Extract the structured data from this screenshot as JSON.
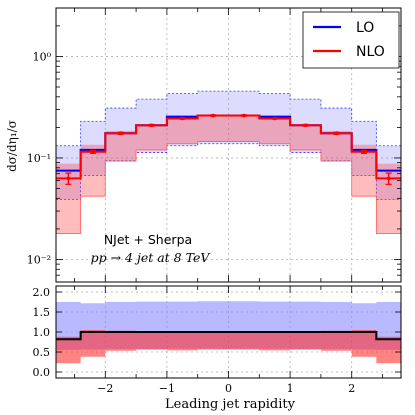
{
  "chart_data": [
    {
      "type": "line",
      "panel": "main",
      "ylabel": "dσ/dη₁/σ",
      "xlim": [
        -2.8,
        2.8
      ],
      "ylim": [
        0.006,
        3.0
      ],
      "yscale": "log",
      "grid": true,
      "legend_position": "top-right",
      "legend": [
        {
          "name": "LO",
          "color": "#0000ff"
        },
        {
          "name": "NLO",
          "color": "#ff0000"
        }
      ],
      "annotation": {
        "line1": "NJet + Sherpa",
        "line2": "pp → 4 jet at 8 TeV"
      },
      "y_tick_labels": [
        "10⁻²",
        "10⁻¹",
        "10⁰"
      ],
      "bin_edges": [
        -2.8,
        -2.4,
        -2.0,
        -1.5,
        -1.0,
        -0.5,
        0.0,
        0.5,
        1.0,
        1.5,
        2.0,
        2.4,
        2.8
      ],
      "series": [
        {
          "name": "LO",
          "color": "#0000ff",
          "values": [
            0.075,
            0.12,
            0.175,
            0.21,
            0.255,
            0.262,
            0.262,
            0.255,
            0.21,
            0.175,
            0.12,
            0.075
          ],
          "band_low": [
            0.039,
            0.067,
            0.094,
            0.113,
            0.132,
            0.138,
            0.138,
            0.132,
            0.113,
            0.094,
            0.067,
            0.039
          ],
          "band_high": [
            0.132,
            0.23,
            0.31,
            0.38,
            0.43,
            0.455,
            0.455,
            0.43,
            0.38,
            0.31,
            0.23,
            0.132
          ]
        },
        {
          "name": "NLO",
          "color": "#ff0000",
          "values": [
            0.063,
            0.115,
            0.175,
            0.21,
            0.245,
            0.262,
            0.262,
            0.245,
            0.21,
            0.175,
            0.115,
            0.063
          ],
          "errors": [
            0.008,
            0.004,
            0.004,
            0.004,
            0.004,
            0.004,
            0.004,
            0.004,
            0.004,
            0.004,
            0.004,
            0.008
          ],
          "band_low": [
            0.018,
            0.042,
            0.093,
            0.12,
            0.138,
            0.145,
            0.145,
            0.138,
            0.12,
            0.093,
            0.042,
            0.018
          ],
          "band_high": [
            0.088,
            0.135,
            0.185,
            0.215,
            0.25,
            0.262,
            0.262,
            0.25,
            0.215,
            0.185,
            0.135,
            0.088
          ]
        }
      ]
    },
    {
      "type": "line",
      "panel": "ratio",
      "xlabel": "Leading jet rapidity",
      "xlim": [
        -2.8,
        2.8
      ],
      "ylim": [
        -0.15,
        2.15
      ],
      "x_tick_labels": [
        "−2",
        "−1",
        "0",
        "1",
        "2"
      ],
      "y_tick_labels": [
        "0.0",
        "0.5",
        "1.0",
        "1.5",
        "2.0"
      ],
      "grid": true,
      "bin_edges": [
        -2.8,
        -2.4,
        -2.0,
        -1.5,
        -1.0,
        -0.5,
        0.0,
        0.5,
        1.0,
        1.5,
        2.0,
        2.4,
        2.8
      ],
      "series": [
        {
          "name": "LO",
          "color": "#0000ff",
          "values": [
            0.82,
            1.0,
            1.0,
            1.0,
            1.0,
            1.0,
            1.0,
            1.0,
            1.0,
            1.0,
            1.0,
            0.82
          ],
          "band_low": [
            0.55,
            0.56,
            0.57,
            0.57,
            0.58,
            0.58,
            0.58,
            0.58,
            0.57,
            0.57,
            0.56,
            0.55
          ],
          "band_high": [
            1.75,
            1.72,
            1.75,
            1.76,
            1.76,
            1.77,
            1.77,
            1.76,
            1.76,
            1.75,
            1.72,
            1.75
          ]
        },
        {
          "name": "NLO",
          "color": "#ff0000",
          "values": [
            0.82,
            0.96,
            1.0,
            1.0,
            0.96,
            1.0,
            1.0,
            0.96,
            1.0,
            1.0,
            0.96,
            0.82
          ],
          "band_low": [
            0.22,
            0.38,
            0.53,
            0.56,
            0.54,
            0.56,
            0.56,
            0.54,
            0.56,
            0.53,
            0.38,
            0.22
          ],
          "band_high": [
            0.88,
            1.05,
            1.03,
            1.0,
            1.0,
            1.0,
            1.0,
            1.0,
            1.0,
            1.03,
            1.05,
            0.88
          ]
        }
      ]
    }
  ]
}
